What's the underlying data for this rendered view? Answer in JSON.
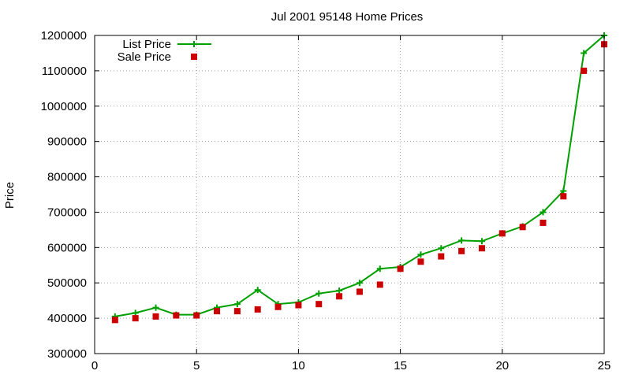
{
  "chart_data": {
    "type": "line",
    "title": "Jul 2001 95148 Home Prices",
    "xlabel": "",
    "ylabel": "Price",
    "xlim": [
      0,
      25
    ],
    "ylim": [
      300000,
      1200000
    ],
    "x_ticks": [
      "0",
      "5",
      "10",
      "15",
      "20",
      "25"
    ],
    "y_ticks": [
      "300000",
      "400000",
      "500000",
      "600000",
      "700000",
      "800000",
      "900000",
      "1000000",
      "1100000",
      "1200000"
    ],
    "grid": true,
    "legend_position": "top-left",
    "x": [
      1,
      2,
      3,
      4,
      5,
      6,
      7,
      8,
      9,
      10,
      11,
      12,
      13,
      14,
      15,
      16,
      17,
      18,
      19,
      20,
      21,
      22,
      23,
      24,
      25
    ],
    "series": [
      {
        "name": "List Price",
        "style": "line-with-plus-markers",
        "color": "#00a000",
        "values": [
          405000,
          415000,
          430000,
          410000,
          410000,
          430000,
          440000,
          480000,
          440000,
          445000,
          470000,
          478000,
          500000,
          540000,
          545000,
          580000,
          598000,
          620000,
          618000,
          640000,
          660000,
          700000,
          760000,
          1150000,
          1200000
        ]
      },
      {
        "name": "Sale Price",
        "style": "square-markers",
        "color": "#cc0000",
        "values": [
          395000,
          400000,
          405000,
          408000,
          408000,
          420000,
          420000,
          425000,
          432000,
          437000,
          440000,
          462000,
          475000,
          495000,
          540000,
          560000,
          575000,
          590000,
          598000,
          640000,
          658000,
          670000,
          745000,
          1100000,
          1175000
        ]
      }
    ]
  }
}
